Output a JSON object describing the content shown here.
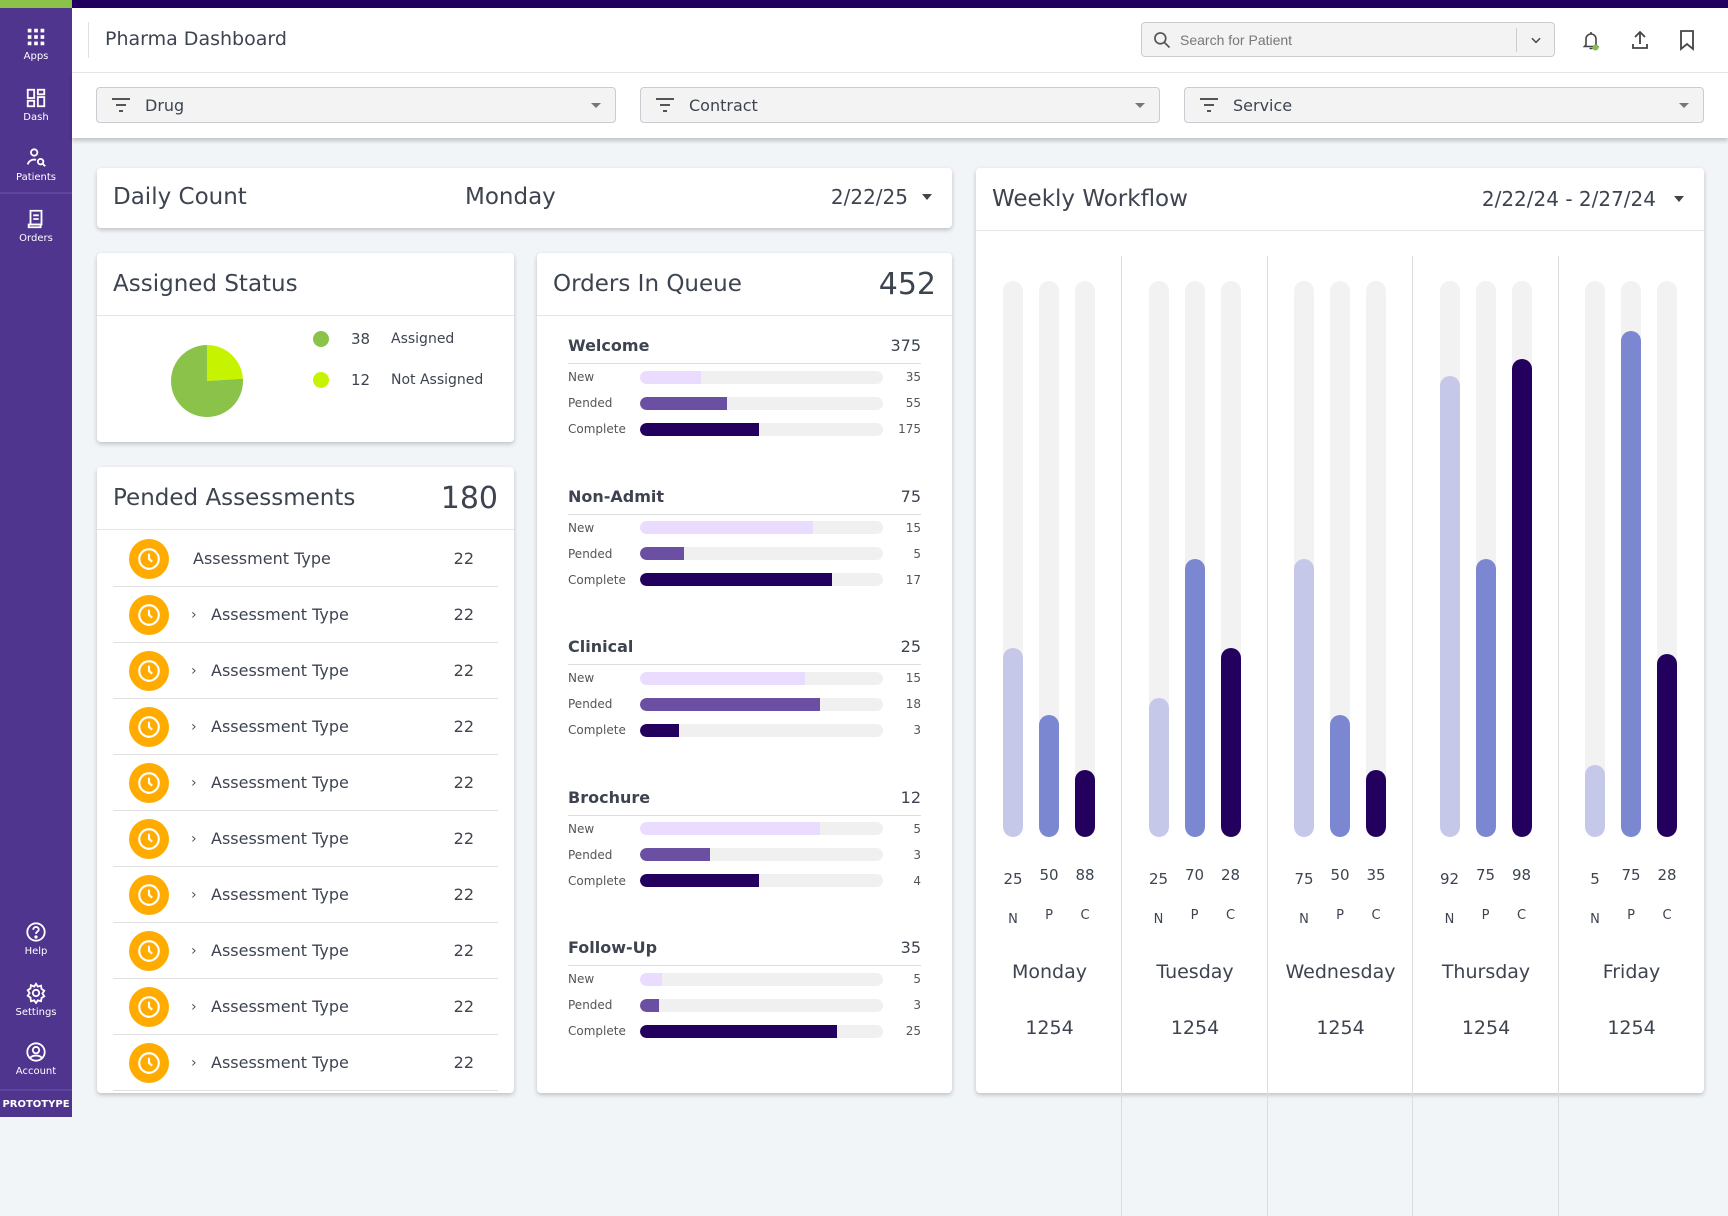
{
  "sidebar": {
    "top": [
      {
        "label": "Apps",
        "icon": "apps-grid-icon"
      },
      {
        "label": "Dash",
        "icon": "dashboard-icon"
      },
      {
        "label": "Patients",
        "icon": "patient-search-icon"
      },
      {
        "label": "Orders",
        "icon": "orders-icon"
      }
    ],
    "bottom": [
      {
        "label": "Help",
        "icon": "help-icon"
      },
      {
        "label": "Settings",
        "icon": "gear-icon"
      },
      {
        "label": "Account",
        "icon": "account-icon"
      }
    ],
    "badge": "PROTOTYPE"
  },
  "header": {
    "title": "Pharma Dashboard",
    "search_placeholder": "Search for Patient"
  },
  "filters": [
    "Drug",
    "Contract",
    "Service"
  ],
  "daily": {
    "title": "Daily Count",
    "day": "Monday",
    "date": "2/22/25"
  },
  "assigned": {
    "title": "Assigned Status",
    "items": [
      {
        "count": "38",
        "label": "Assigned",
        "color": "#8bc34a",
        "value": 38
      },
      {
        "count": "12",
        "label": "Not Assigned",
        "color": "#c6f400",
        "value": 12
      }
    ]
  },
  "pended": {
    "title": "Pended Assessments",
    "total": "180",
    "rows": [
      {
        "label": "Assessment Type",
        "count": "22",
        "expandable": false
      },
      {
        "label": "Assessment Type",
        "count": "22",
        "expandable": true
      },
      {
        "label": "Assessment Type",
        "count": "22",
        "expandable": true
      },
      {
        "label": "Assessment Type",
        "count": "22",
        "expandable": true
      },
      {
        "label": "Assessment Type",
        "count": "22",
        "expandable": true
      },
      {
        "label": "Assessment Type",
        "count": "22",
        "expandable": true
      },
      {
        "label": "Assessment Type",
        "count": "22",
        "expandable": true
      },
      {
        "label": "Assessment Type",
        "count": "22",
        "expandable": true
      },
      {
        "label": "Assessment Type",
        "count": "22",
        "expandable": true
      },
      {
        "label": "Assessment Type",
        "count": "22",
        "expandable": true
      }
    ]
  },
  "queue": {
    "title": "Orders In Queue",
    "total": "452",
    "colors": {
      "New": "#eadcff",
      "Pended": "#6a4fa3",
      "Complete": "#23005e"
    },
    "sections": [
      {
        "name": "Welcome",
        "total": "375",
        "rows": [
          {
            "label": "New",
            "value": "35",
            "fill": 0.25
          },
          {
            "label": "Pended",
            "value": "55",
            "fill": 0.36
          },
          {
            "label": "Complete",
            "value": "175",
            "fill": 0.49
          }
        ]
      },
      {
        "name": "Non-Admit",
        "total": "75",
        "rows": [
          {
            "label": "New",
            "value": "15",
            "fill": 0.71
          },
          {
            "label": "Pended",
            "value": "5",
            "fill": 0.18
          },
          {
            "label": "Complete",
            "value": "17",
            "fill": 0.79
          }
        ]
      },
      {
        "name": "Clinical",
        "total": "25",
        "rows": [
          {
            "label": "New",
            "value": "15",
            "fill": 0.68
          },
          {
            "label": "Pended",
            "value": "18",
            "fill": 0.74
          },
          {
            "label": "Complete",
            "value": "3",
            "fill": 0.16
          }
        ]
      },
      {
        "name": "Brochure",
        "total": "12",
        "rows": [
          {
            "label": "New",
            "value": "5",
            "fill": 0.74
          },
          {
            "label": "Pended",
            "value": "3",
            "fill": 0.29
          },
          {
            "label": "Complete",
            "value": "4",
            "fill": 0.49
          }
        ]
      },
      {
        "name": "Follow-Up",
        "total": "35",
        "rows": [
          {
            "label": "New",
            "value": "5",
            "fill": 0.09
          },
          {
            "label": "Pended",
            "value": "3",
            "fill": 0.08
          },
          {
            "label": "Complete",
            "value": "25",
            "fill": 0.81
          }
        ]
      }
    ]
  },
  "weekly": {
    "title": "Weekly Workflow",
    "range": "2/22/24 - 2/27/24",
    "colors": [
      "#c5c8e8",
      "#7b87d0",
      "#23005e"
    ],
    "days": [
      {
        "day": "Monday",
        "total": "1254",
        "bars": [
          {
            "letter": "N",
            "value": "25",
            "fill": 0.34
          },
          {
            "letter": "P",
            "value": "50",
            "fill": 0.22
          },
          {
            "letter": "C",
            "value": "88",
            "fill": 0.12
          }
        ]
      },
      {
        "day": "Tuesday",
        "total": "1254",
        "bars": [
          {
            "letter": "N",
            "value": "25",
            "fill": 0.25
          },
          {
            "letter": "P",
            "value": "70",
            "fill": 0.5
          },
          {
            "letter": "C",
            "value": "28",
            "fill": 0.34
          }
        ]
      },
      {
        "day": "Wednesday",
        "total": "1254",
        "bars": [
          {
            "letter": "N",
            "value": "75",
            "fill": 0.5
          },
          {
            "letter": "P",
            "value": "50",
            "fill": 0.22
          },
          {
            "letter": "C",
            "value": "35",
            "fill": 0.12
          }
        ]
      },
      {
        "day": "Thursday",
        "total": "1254",
        "bars": [
          {
            "letter": "N",
            "value": "92",
            "fill": 0.83
          },
          {
            "letter": "P",
            "value": "75",
            "fill": 0.5
          },
          {
            "letter": "C",
            "value": "98",
            "fill": 0.86
          }
        ]
      },
      {
        "day": "Friday",
        "total": "1254",
        "bars": [
          {
            "letter": "N",
            "value": "5",
            "fill": 0.13
          },
          {
            "letter": "P",
            "value": "75",
            "fill": 0.91
          },
          {
            "letter": "C",
            "value": "28",
            "fill": 0.33
          }
        ]
      }
    ]
  }
}
